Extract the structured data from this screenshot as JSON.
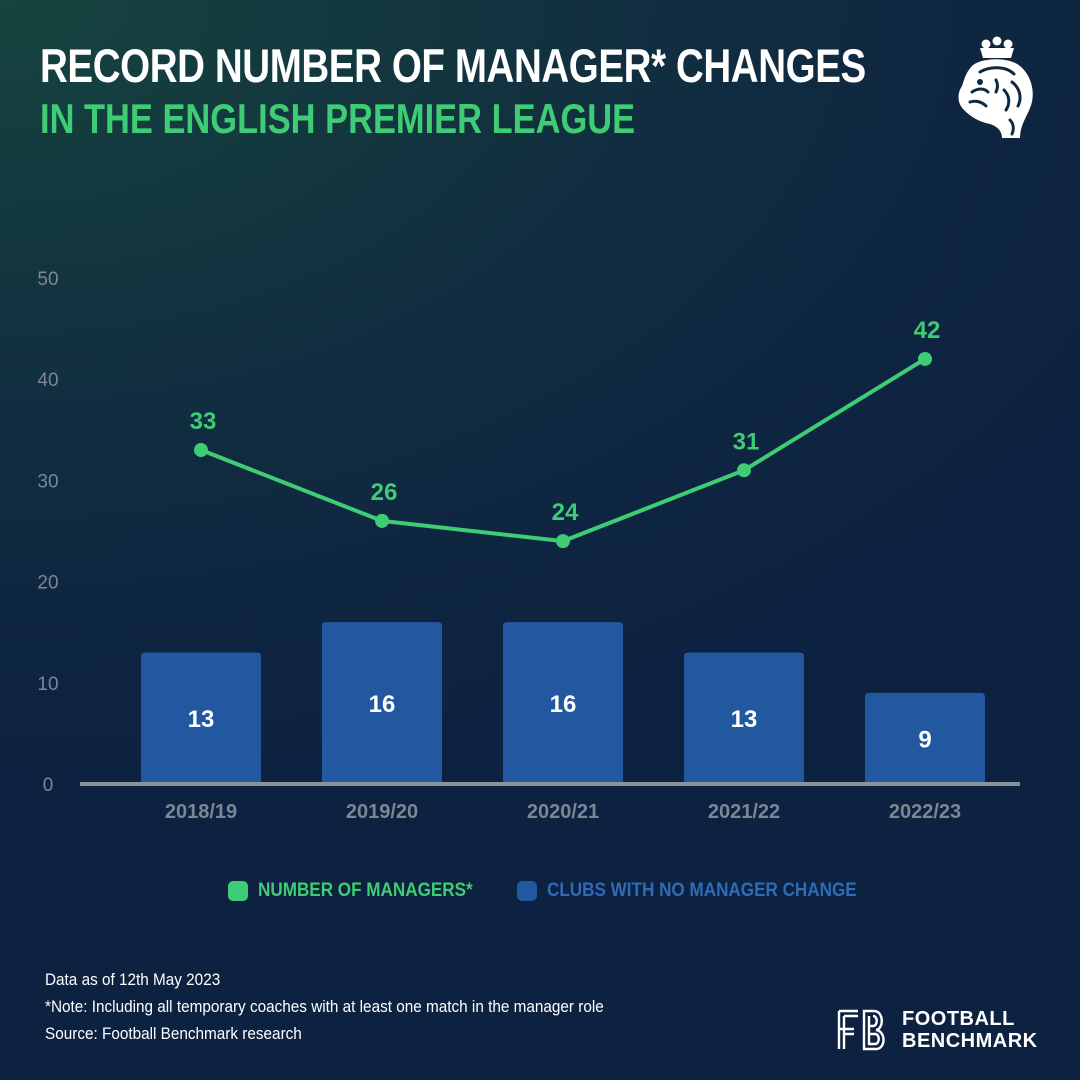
{
  "header": {
    "title": "RECORD NUMBER OF MANAGER* CHANGES",
    "subtitle": "IN THE ENGLISH PREMIER LEAGUE"
  },
  "colors": {
    "line": "#3ecc74",
    "bar": "#2158a0",
    "title": "#ffffff",
    "subtitle": "#3ecc74",
    "axis_text": "#7d8794",
    "baseline": "#8a929c",
    "legend_bar_text": "#2f6cb8"
  },
  "chart_data": {
    "type": "bar",
    "categories": [
      "2018/19",
      "2019/20",
      "2020/21",
      "2021/22",
      "2022/23"
    ],
    "series": [
      {
        "name": "NUMBER OF MANAGERS*",
        "type": "line",
        "values": [
          33,
          26,
          24,
          31,
          42
        ]
      },
      {
        "name": "CLUBS WITH NO MANAGER CHANGE",
        "type": "bar",
        "values": [
          13,
          16,
          16,
          13,
          9
        ]
      }
    ],
    "yticks": [
      0,
      10,
      20,
      30,
      40,
      50
    ],
    "ylim": [
      0,
      50
    ],
    "grid": false,
    "legend_position": "bottom"
  },
  "legend": {
    "line_label": "NUMBER OF MANAGERS*",
    "bar_label": "CLUBS WITH NO MANAGER CHANGE"
  },
  "footer": {
    "data_date": "Data as of 12th May 2023",
    "note": "*Note: Including all temporary coaches with at least one match in the manager role",
    "source": "Source: Football Benchmark research"
  },
  "brand": {
    "line1": "FOOTBALL",
    "line2": "BENCHMARK",
    "logo_icon": "premier-league-lion-icon",
    "fb_icon": "fb-monogram-icon"
  }
}
